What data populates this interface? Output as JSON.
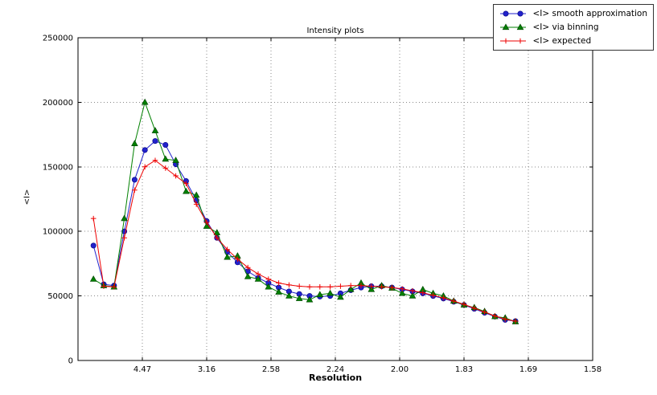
{
  "title": "Intensity plots",
  "xlabel": "Resolution",
  "ylabel": "<I>",
  "legend": [
    {
      "label": "<I> smooth approximation",
      "color": "#2222cc",
      "edge": "#000080",
      "marker": "circle"
    },
    {
      "label": "<I> via binning",
      "color": "#008000",
      "edge": "#004000",
      "marker": "triangle"
    },
    {
      "label": "<I> expected",
      "color": "#ee0000",
      "edge": "#ee0000",
      "marker": "plus"
    }
  ],
  "chart_data": {
    "type": "line",
    "title": "Intensity plots",
    "xlabel": "Resolution",
    "ylabel": "<I>",
    "grid": "dotted",
    "legend_position": "upper right outside plot",
    "x_axis": {
      "unit": "1/d^2 (labels shown as d in Angstrom)",
      "range": [
        0,
        0.4
      ],
      "ticks": [
        0.05,
        0.1,
        0.15,
        0.2,
        0.25,
        0.3,
        0.35,
        0.4
      ],
      "tick_labels": [
        "4.47",
        "3.16",
        "2.58",
        "2.24",
        "2.00",
        "1.83",
        "1.69",
        "1.58"
      ]
    },
    "y_axis": {
      "range": [
        0,
        250000
      ],
      "ticks": [
        0,
        50000,
        100000,
        150000,
        200000,
        250000
      ],
      "tick_labels": [
        "0",
        "50000",
        "100000",
        "150000",
        "200000",
        "250000"
      ]
    },
    "x": [
      0.012,
      0.02,
      0.028,
      0.036,
      0.044,
      0.052,
      0.06,
      0.068,
      0.076,
      0.084,
      0.092,
      0.1,
      0.108,
      0.116,
      0.124,
      0.132,
      0.14,
      0.148,
      0.156,
      0.164,
      0.172,
      0.18,
      0.188,
      0.196,
      0.204,
      0.212,
      0.22,
      0.228,
      0.236,
      0.244,
      0.252,
      0.26,
      0.268,
      0.276,
      0.284,
      0.292,
      0.3,
      0.308,
      0.316,
      0.324,
      0.332,
      0.34
    ],
    "series": [
      {
        "id": "smooth",
        "name": "<I> smooth approximation",
        "marker": "circle",
        "color": "#2222cc",
        "edge": "#000080",
        "values": [
          89000,
          59000,
          58000,
          100000,
          140000,
          163000,
          170000,
          167000,
          152000,
          139000,
          124000,
          108000,
          95000,
          84000,
          76000,
          69000,
          64000,
          60000,
          56500,
          53500,
          51500,
          50000,
          49500,
          50000,
          52000,
          54500,
          56500,
          57500,
          57500,
          56500,
          55000,
          53500,
          52000,
          50000,
          48000,
          45500,
          43000,
          40000,
          37000,
          34000,
          31500,
          30500
        ]
      },
      {
        "id": "binning",
        "name": "<I> via binning",
        "marker": "triangle",
        "color": "#008000",
        "edge": "#004000",
        "values": [
          63000,
          58000,
          57000,
          110000,
          168000,
          200000,
          178000,
          156000,
          155000,
          131000,
          128000,
          104000,
          99000,
          80000,
          81000,
          65000,
          63000,
          57000,
          53000,
          50000,
          48000,
          47000,
          51000,
          52000,
          49000,
          55000,
          60000,
          55000,
          58000,
          56000,
          52000,
          50000,
          55000,
          52000,
          50000,
          46000,
          43000,
          41000,
          38000,
          34000,
          33000,
          30000
        ]
      },
      {
        "id": "expected",
        "name": "<I> expected",
        "marker": "plus",
        "color": "#ee0000",
        "edge": "#ee0000",
        "values": [
          110000,
          57500,
          57000,
          95000,
          132000,
          150000,
          155000,
          149000,
          143000,
          137000,
          121000,
          107000,
          95000,
          86000,
          78500,
          72000,
          67000,
          63000,
          60000,
          58500,
          57500,
          57000,
          57000,
          57000,
          57500,
          58000,
          58000,
          57500,
          57000,
          56500,
          55500,
          54000,
          52500,
          50500,
          48500,
          46000,
          43500,
          40500,
          37500,
          34500,
          32000,
          30500
        ]
      }
    ]
  }
}
